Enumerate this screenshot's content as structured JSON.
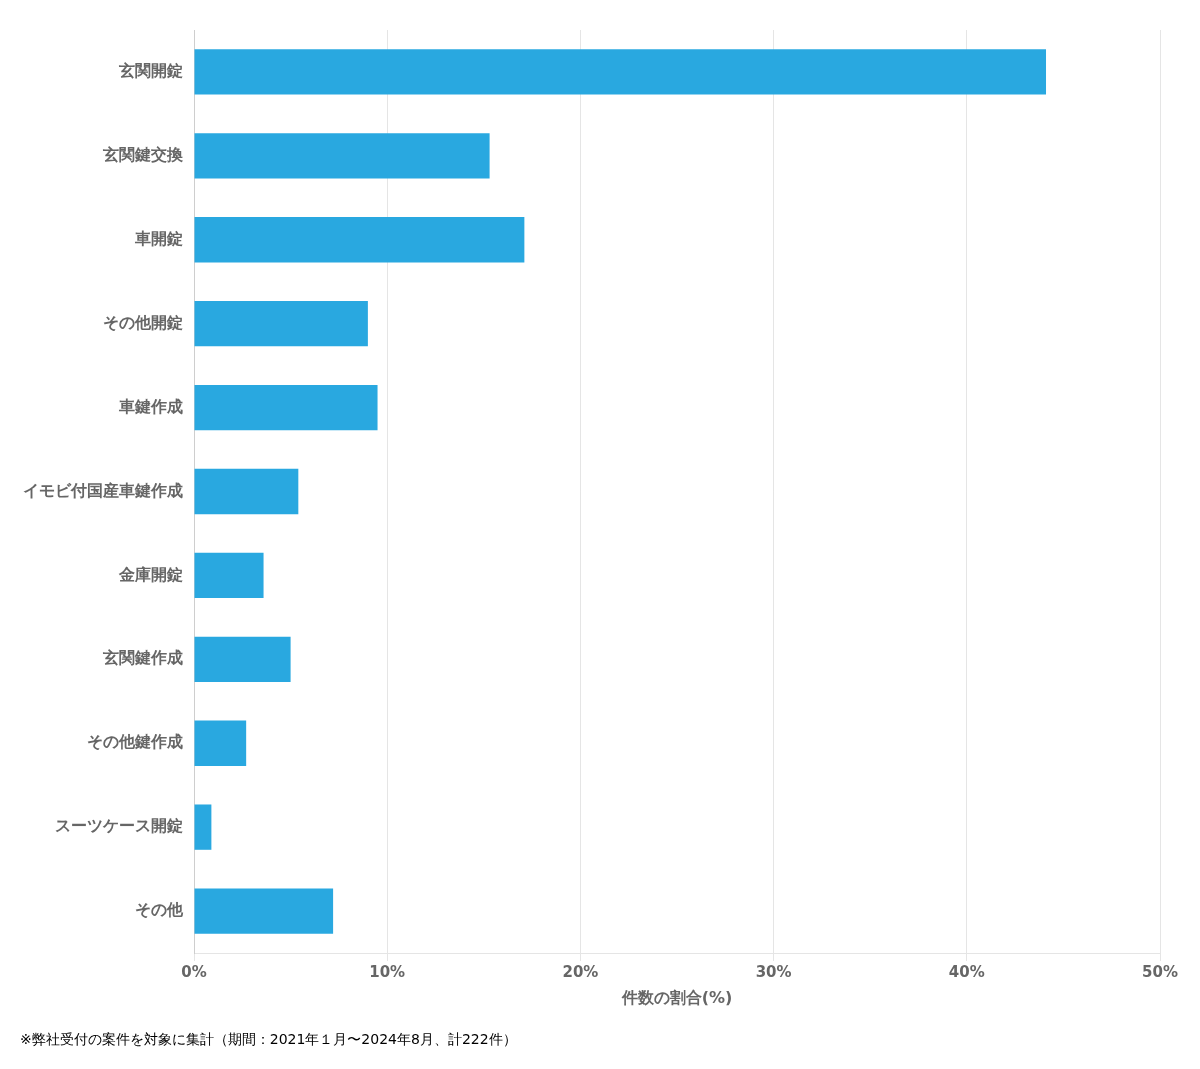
{
  "chart_data": {
    "type": "bar",
    "orientation": "horizontal",
    "categories": [
      "玄関開錠",
      "玄関鍵交換",
      "車開錠",
      "その他開錠",
      "車鍵作成",
      "イモビ付国産車鍵作成",
      "金庫開錠",
      "玄関鍵作成",
      "その他鍵作成",
      "スーツケース開錠",
      "その他"
    ],
    "values": [
      44.1,
      15.3,
      17.1,
      9.0,
      9.5,
      5.4,
      3.6,
      5.0,
      2.7,
      0.9,
      7.2
    ],
    "color": "#29A8E0",
    "xlabel": "件数の割合(%)",
    "xlim": [
      0,
      50
    ],
    "xticks": [
      {
        "value": 0,
        "label": "0%"
      },
      {
        "value": 10,
        "label": "10%"
      },
      {
        "value": 20,
        "label": "20%"
      },
      {
        "value": 30,
        "label": "30%"
      },
      {
        "value": 40,
        "label": "40%"
      },
      {
        "value": 50,
        "label": "50%"
      }
    ],
    "grid": true,
    "annotations": [
      "※弊社受付の案件を対象に集計（期間：2021年１月〜2024年8月、計222件）"
    ]
  }
}
